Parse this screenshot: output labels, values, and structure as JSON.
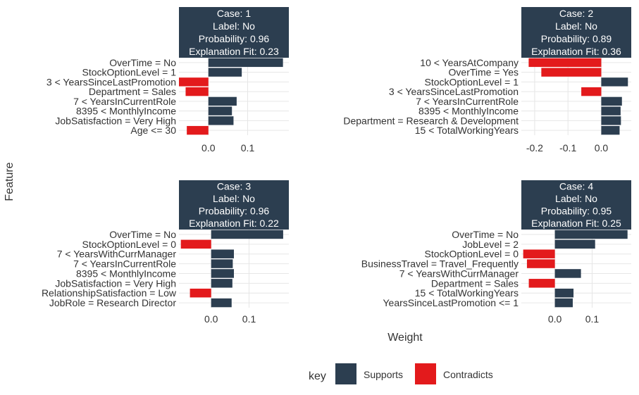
{
  "layout_labels": {
    "y_label": "Feature",
    "x_label": "Weight",
    "legend_title": "key",
    "legend_supports": "Supports",
    "legend_contradicts": "Contradicts"
  },
  "colors": {
    "supports": "#2c3e50",
    "contradicts": "#e31a1c",
    "header_bg": "#2c3e50",
    "header_text": "#ffffff",
    "grid": "#e6e6e6",
    "text": "#333333"
  },
  "chart_data": [
    {
      "type": "bar",
      "orientation": "horizontal",
      "header": [
        "Case: 1",
        "Label: No",
        "Probability: 0.96",
        "Explanation Fit: 0.23"
      ],
      "categories": [
        "OverTime = No",
        "StockOptionLevel = 1",
        "3 < YearsSinceLastPromotion",
        "Department = Sales",
        "7 < YearsInCurrentRole",
        "8395 < MonthlyIncome",
        "JobSatisfaction = Very High",
        "Age <= 30"
      ],
      "values": [
        0.19,
        0.085,
        -0.075,
        -0.058,
        0.072,
        0.06,
        0.064,
        -0.055
      ],
      "xlim": [
        -0.075,
        0.205
      ],
      "xticks": [
        0.0,
        0.1
      ],
      "xtick_labels": [
        "0.0",
        "0.1"
      ],
      "grid": true
    },
    {
      "type": "bar",
      "orientation": "horizontal",
      "header": [
        "Case: 2",
        "Label: No",
        "Probability: 0.89",
        "Explanation Fit: 0.36"
      ],
      "categories": [
        "10 < YearsAtCompany",
        "OverTime = Yes",
        "StockOptionLevel = 1",
        "3 < YearsSinceLastPromotion",
        "7 < YearsInCurrentRole",
        "8395 < MonthlyIncome",
        "Department = Research & Development",
        "15 < TotalWorkingYears"
      ],
      "values": [
        -0.218,
        -0.18,
        0.08,
        -0.06,
        0.062,
        0.058,
        0.059,
        0.055
      ],
      "xlim": [
        -0.24,
        0.09
      ],
      "xticks": [
        -0.2,
        -0.1,
        0.0
      ],
      "xtick_labels": [
        "-0.2",
        "-0.1",
        "0.0"
      ],
      "grid": true
    },
    {
      "type": "bar",
      "orientation": "horizontal",
      "header": [
        "Case: 3",
        "Label: No",
        "Probability: 0.96",
        "Explanation Fit: 0.22"
      ],
      "categories": [
        "OverTime = No",
        "StockOptionLevel = 0",
        "7 < YearsWithCurrManager",
        "7 < YearsInCurrentRole",
        "8395 < MonthlyIncome",
        "JobSatisfaction = Very High",
        "RelationshipSatisfaction = Low",
        "JobRole = Research Director"
      ],
      "values": [
        0.19,
        -0.08,
        0.06,
        0.057,
        0.06,
        0.056,
        -0.056,
        0.054
      ],
      "xlim": [
        -0.085,
        0.205
      ],
      "xticks": [
        0.0,
        0.1
      ],
      "xtick_labels": [
        "0.0",
        "0.1"
      ],
      "grid": true
    },
    {
      "type": "bar",
      "orientation": "horizontal",
      "header": [
        "Case: 4",
        "Label: No",
        "Probability: 0.95",
        "Explanation Fit: 0.25"
      ],
      "categories": [
        "OverTime = No",
        "JobLevel = 2",
        "StockOptionLevel = 0",
        "BusinessTravel = Travel_Frequently",
        "7 < YearsWithCurrManager",
        "Department = Sales",
        "15 < TotalWorkingYears",
        "YearsSinceLastPromotion <= 1"
      ],
      "values": [
        0.195,
        0.108,
        -0.085,
        -0.075,
        0.07,
        -0.07,
        0.05,
        0.048
      ],
      "xlim": [
        -0.09,
        0.205
      ],
      "xticks": [
        0.0,
        0.1
      ],
      "xtick_labels": [
        "0.0",
        "0.1"
      ],
      "grid": true
    }
  ]
}
